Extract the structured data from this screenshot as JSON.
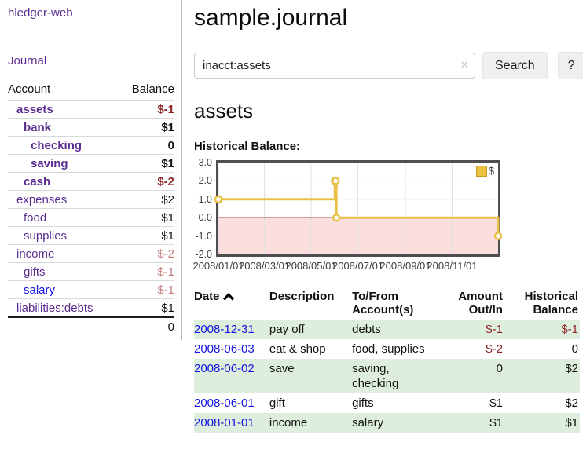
{
  "colors": {
    "accent_purple": "#5b2d91",
    "link_blue": "#1414e0",
    "negative_red": "#8e2424",
    "negative_soft": "#c47d7d",
    "row_stripe_green": "#ddeedd",
    "chart_gold": "#e8c04a",
    "chart_gold_fill": "#edc240",
    "chart_negative_fill": "#fbdfdf",
    "chart_zero_line": "#8b0000",
    "chart_grid": "#e2e2e2"
  },
  "sidebar": {
    "brand": "hledger-web",
    "journal_label": "Journal",
    "accounts_table": {
      "headers": {
        "account": "Account",
        "balance": "Balance"
      },
      "rows": [
        {
          "name": "assets",
          "balance": "$-1",
          "name_cls": "ind1 strong",
          "bal_cls": "strong neg"
        },
        {
          "name": "bank",
          "balance": "$1",
          "name_cls": "ind2 strong",
          "bal_cls": "strong"
        },
        {
          "name": "checking",
          "balance": "0",
          "name_cls": "ind3 strong",
          "bal_cls": "strong"
        },
        {
          "name": "saving",
          "balance": "$1",
          "name_cls": "ind3 strong",
          "bal_cls": "strong"
        },
        {
          "name": "cash",
          "balance": "$-2",
          "name_cls": "ind2 strong",
          "bal_cls": "strong neg"
        },
        {
          "name": "expenses",
          "balance": "$2",
          "name_cls": "ind1",
          "bal_cls": ""
        },
        {
          "name": "food",
          "balance": "$1",
          "name_cls": "ind2",
          "bal_cls": ""
        },
        {
          "name": "supplies",
          "balance": "$1",
          "name_cls": "ind2",
          "bal_cls": ""
        },
        {
          "name": "income",
          "balance": "$-2",
          "name_cls": "ind1",
          "bal_cls": "softneg"
        },
        {
          "name": "gifts",
          "balance": "$-1",
          "name_cls": "ind2",
          "bal_cls": "softneg"
        },
        {
          "name": "salary",
          "balance": "$-1",
          "name_cls": "ind2 blue",
          "bal_cls": "softneg"
        },
        {
          "name": "liabilities:debts",
          "balance": "$1",
          "name_cls": "ind1",
          "bal_cls": ""
        }
      ],
      "total": "0"
    }
  },
  "header": {
    "title": "sample.journal"
  },
  "search": {
    "value": "inacct:assets",
    "clear_icon": "×",
    "button_label": "Search",
    "help_label": "?"
  },
  "account_page": {
    "heading": "assets",
    "chart_label": "Historical Balance:"
  },
  "chart_data": {
    "type": "line",
    "step": true,
    "title": "Historical Balance",
    "series": [
      {
        "name": "$",
        "points": [
          [
            "2008-01-01",
            1
          ],
          [
            "2008-06-01",
            2
          ],
          [
            "2008-06-02",
            2
          ],
          [
            "2008-06-03",
            0
          ],
          [
            "2008-12-31",
            -1
          ]
        ]
      }
    ],
    "xlim": [
      "2008-01-01",
      "2008-12-31"
    ],
    "ylim": [
      -2,
      3
    ],
    "x_tick_labels": [
      "2008/01/01",
      "2008/03/01",
      "2008/05/01",
      "2008/07/01",
      "2008/09/01",
      "2008/11/01"
    ],
    "y_tick_labels": [
      "3.0",
      "2.0",
      "1.0",
      "0.0",
      "-1.0",
      "-2.0"
    ],
    "grid": true,
    "legend_position": "top-right"
  },
  "register_table": {
    "headers": {
      "date": "Date",
      "description": "Description",
      "accounts": "To/From\nAccount(s)",
      "amount": "Amount\nOut/In",
      "balance": "Historical\nBalance"
    },
    "rows": [
      {
        "date": "2008-12-31",
        "description": "pay off",
        "accounts": "debts",
        "amount": "$-1",
        "balance": "$-1",
        "tr_cls": "stripe",
        "amt_cls": "neg",
        "bal_cls": "neg"
      },
      {
        "date": "2008-06-03",
        "description": "eat & shop",
        "accounts": "food, supplies",
        "amount": "$-2",
        "balance": "0",
        "tr_cls": "",
        "amt_cls": "neg",
        "bal_cls": ""
      },
      {
        "date": "2008-06-02",
        "description": "save",
        "accounts": "saving,\nchecking",
        "amount": "0",
        "balance": "$2",
        "tr_cls": "stripe",
        "amt_cls": "",
        "bal_cls": ""
      },
      {
        "date": "2008-06-01",
        "description": "gift",
        "accounts": "gifts",
        "amount": "$1",
        "balance": "$2",
        "tr_cls": "",
        "amt_cls": "",
        "bal_cls": ""
      },
      {
        "date": "2008-01-01",
        "description": "income",
        "accounts": "salary",
        "amount": "$1",
        "balance": "$1",
        "tr_cls": "stripe",
        "amt_cls": "",
        "bal_cls": ""
      }
    ]
  }
}
